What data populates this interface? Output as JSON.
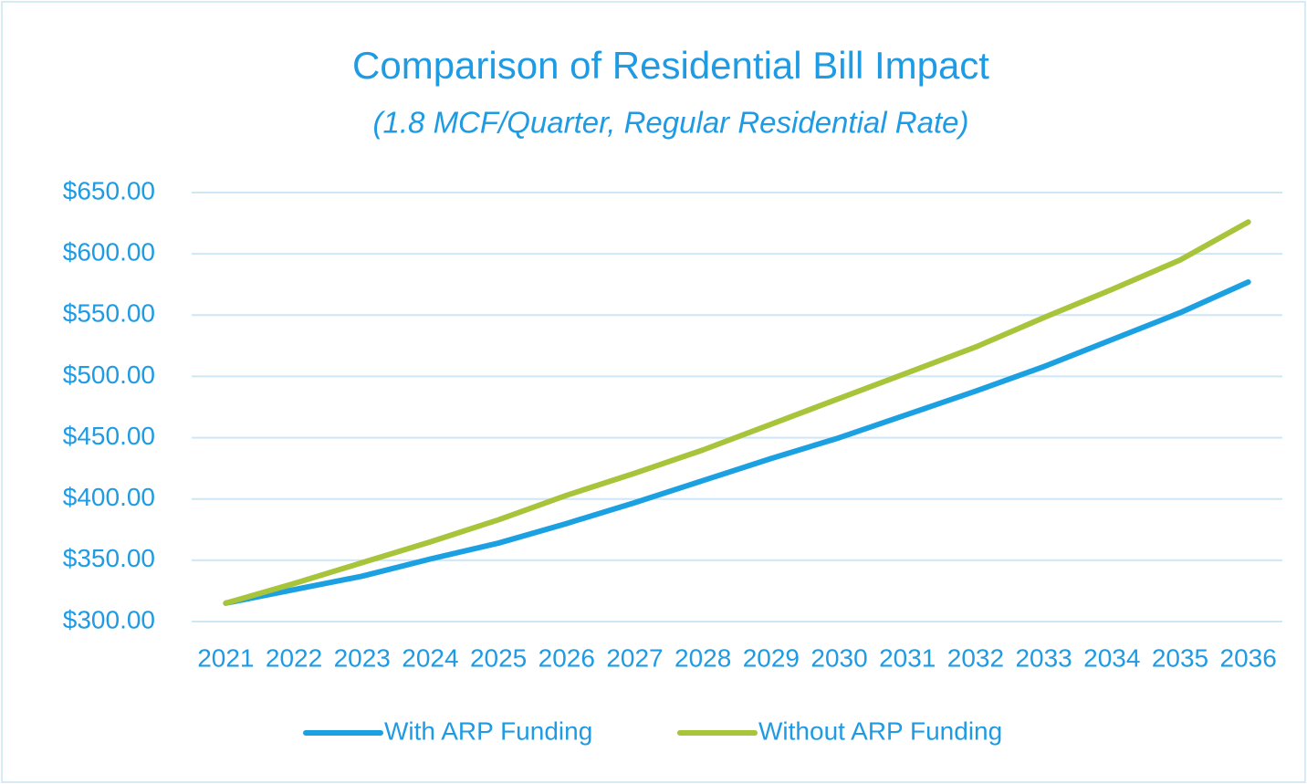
{
  "chart_data": {
    "type": "line",
    "title": "Comparison of Residential Bill Impact",
    "subtitle": "(1.8 MCF/Quarter, Regular Residential Rate)",
    "categories": [
      "2021",
      "2022",
      "2023",
      "2024",
      "2025",
      "2026",
      "2027",
      "2028",
      "2029",
      "2030",
      "2031",
      "2032",
      "2033",
      "2034",
      "2035",
      "2036"
    ],
    "series": [
      {
        "name": "With ARP Funding",
        "color": "#1ba1e2",
        "values": [
          315,
          326,
          337,
          351,
          364,
          380,
          397,
          415,
          433,
          450,
          469,
          488,
          508,
          530,
          552,
          577
        ]
      },
      {
        "name": "Without ARP Funding",
        "color": "#a8c43a",
        "values": [
          315,
          331,
          348,
          365,
          383,
          403,
          421,
          440,
          461,
          482,
          503,
          524,
          548,
          571,
          595,
          626
        ]
      }
    ],
    "ylim": [
      300,
      650
    ],
    "yticks": [
      {
        "value": 300,
        "label": "$300.00"
      },
      {
        "value": 350,
        "label": "$350.00"
      },
      {
        "value": 400,
        "label": "$400.00"
      },
      {
        "value": 450,
        "label": "$450.00"
      },
      {
        "value": 500,
        "label": "$500.00"
      },
      {
        "value": 550,
        "label": "$550.00"
      },
      {
        "value": 600,
        "label": "$600.00"
      },
      {
        "value": 650,
        "label": "$650.00"
      }
    ],
    "grid": true,
    "legend": "bottom"
  }
}
